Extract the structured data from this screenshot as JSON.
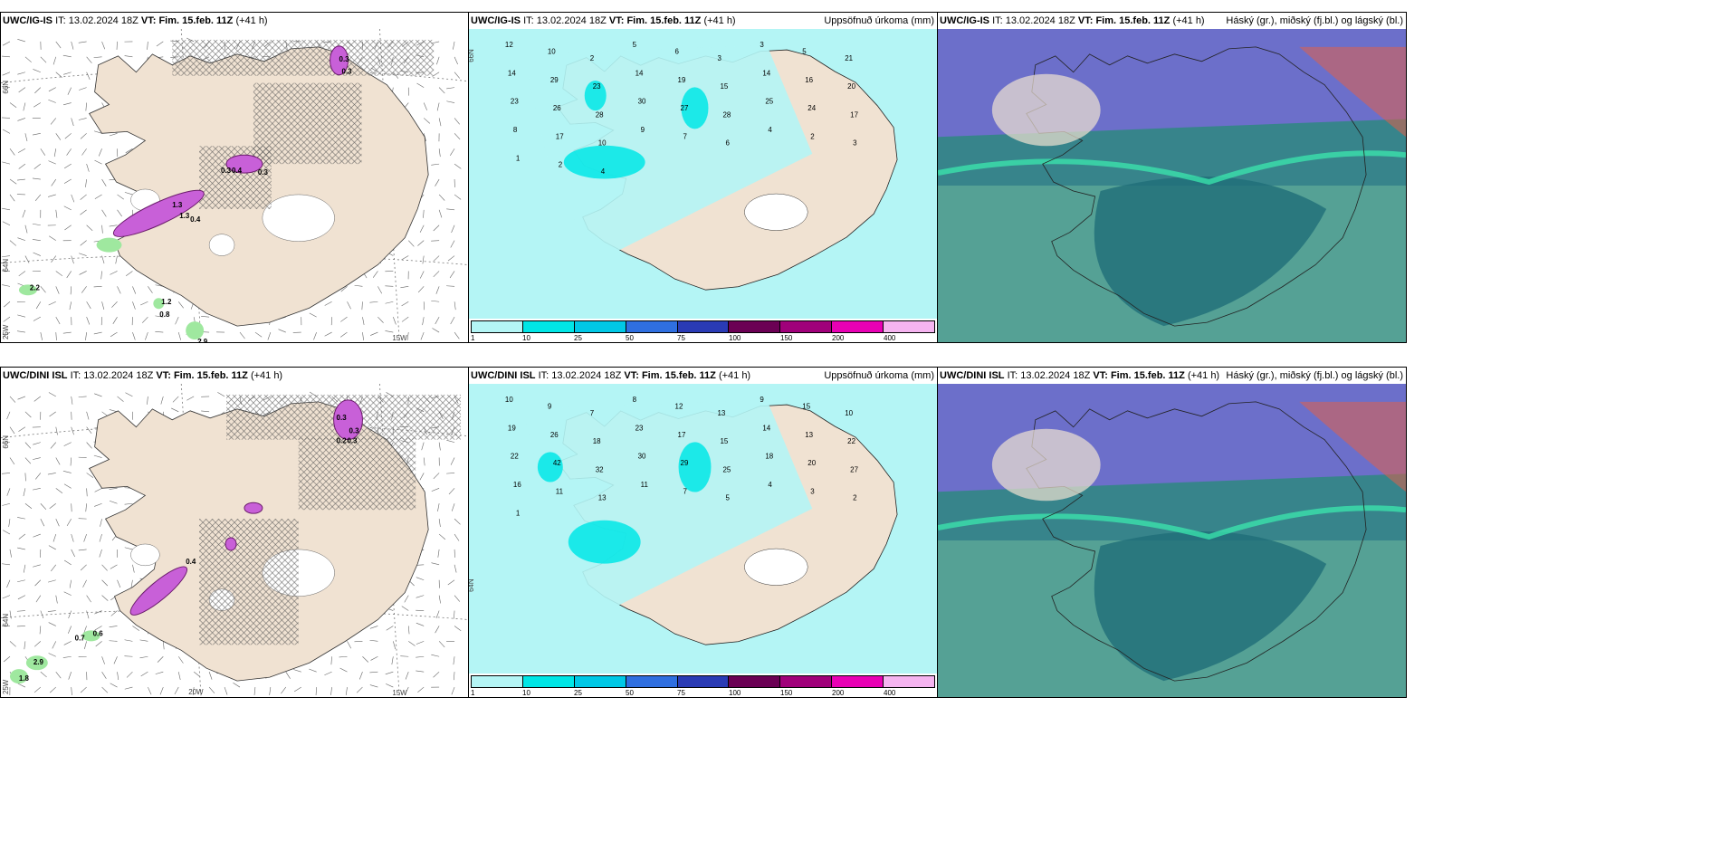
{
  "panels": [
    {
      "model": "UWC/IG-IS",
      "it_label": "IT:",
      "it": "13.02.2024 18Z",
      "vt_label": "VT:",
      "vt": "Fim. 15.feb. 11Z",
      "lead": "(+41 h)",
      "right": ""
    },
    {
      "model": "UWC/IG-IS",
      "it_label": "IT:",
      "it": "13.02.2024 18Z",
      "vt_label": "VT:",
      "vt": "Fim. 15.feb. 11Z",
      "lead": "(+41 h)",
      "right": "Uppsöfnuð úrkoma (mm)"
    },
    {
      "model": "UWC/IG-IS",
      "it_label": "IT:",
      "it": "13.02.2024 18Z",
      "vt_label": "VT:",
      "vt": "Fim. 15.feb. 11Z",
      "lead": "(+41 h)",
      "right": "Háský (gr.), miðský (fj.bl.) og lágský (bl.)"
    },
    {
      "model": "UWC/DINI ISL",
      "it_label": "IT:",
      "it": "13.02.2024 18Z",
      "vt_label": "VT:",
      "vt": "Fim. 15.feb. 11Z",
      "lead": "(+41 h)",
      "right": ""
    },
    {
      "model": "UWC/DINI ISL",
      "it_label": "IT:",
      "it": "13.02.2024 18Z",
      "vt_label": "VT:",
      "vt": "Fim. 15.feb. 11Z",
      "lead": "(+41 h)",
      "right": "Uppsöfnuð úrkoma (mm)"
    },
    {
      "model": "UWC/DINI ISL",
      "it_label": "IT:",
      "it": "13.02.2024 18Z",
      "vt_label": "VT:",
      "vt": "Fim. 15.feb. 11Z",
      "lead": "(+41 h)",
      "right": "Háský (gr.), miðský (fj.bl.) og lágský (bl.)"
    }
  ],
  "legend": {
    "ticks": [
      "1",
      "10",
      "25",
      "50",
      "75",
      "100",
      "150",
      "200",
      "400"
    ],
    "colors": [
      "#b4f5f5",
      "#00e6e6",
      "#00c8e6",
      "#2f6fe0",
      "#2a3bb5",
      "#6b0054",
      "#a0007a",
      "#e800b4",
      "#f5b4f0"
    ]
  },
  "axis_labels": {
    "lat66": "66N",
    "lat64": "64N",
    "lon25": "25W",
    "lon20": "20W",
    "lon15": "15W"
  },
  "precip_top_values": [
    "12",
    "10",
    "2",
    "5",
    "6",
    "3",
    "3",
    "5",
    "21",
    "14",
    "29",
    "23",
    "14",
    "19",
    "15",
    "14",
    "16",
    "20",
    "23",
    "26",
    "28",
    "30",
    "27",
    "28",
    "25",
    "24",
    "17",
    "8",
    "17",
    "10",
    "9",
    "7",
    "6",
    "4",
    "2",
    "3",
    "1",
    "2",
    "4"
  ],
  "precip_bottom_values": [
    "10",
    "9",
    "7",
    "8",
    "12",
    "13",
    "9",
    "15",
    "10",
    "19",
    "26",
    "18",
    "23",
    "17",
    "15",
    "14",
    "13",
    "22",
    "22",
    "42",
    "32",
    "30",
    "29",
    "25",
    "18",
    "20",
    "27",
    "16",
    "11",
    "13",
    "11",
    "7",
    "5",
    "4",
    "3",
    "2",
    "1"
  ],
  "wet_top_values": [
    "0.3",
    "0.3",
    "0.3",
    "0.4",
    "0.3",
    "1.3",
    "1.3",
    "0.4",
    "2.2",
    "1.2",
    "0.8",
    "2.9"
  ],
  "wet_bottom_values": [
    "0.3",
    "0.3",
    "0.2",
    "0.3",
    "0.4",
    "0.7",
    "0.6",
    "2.9",
    "1.8"
  ],
  "colors": {
    "land": "#f0e2d2",
    "sea_precip": "#b4f5f5",
    "cloud_high": "#2a8a7a",
    "cloud_mid": "#3b3fb8",
    "cloud_low": "#2f3fd0"
  }
}
